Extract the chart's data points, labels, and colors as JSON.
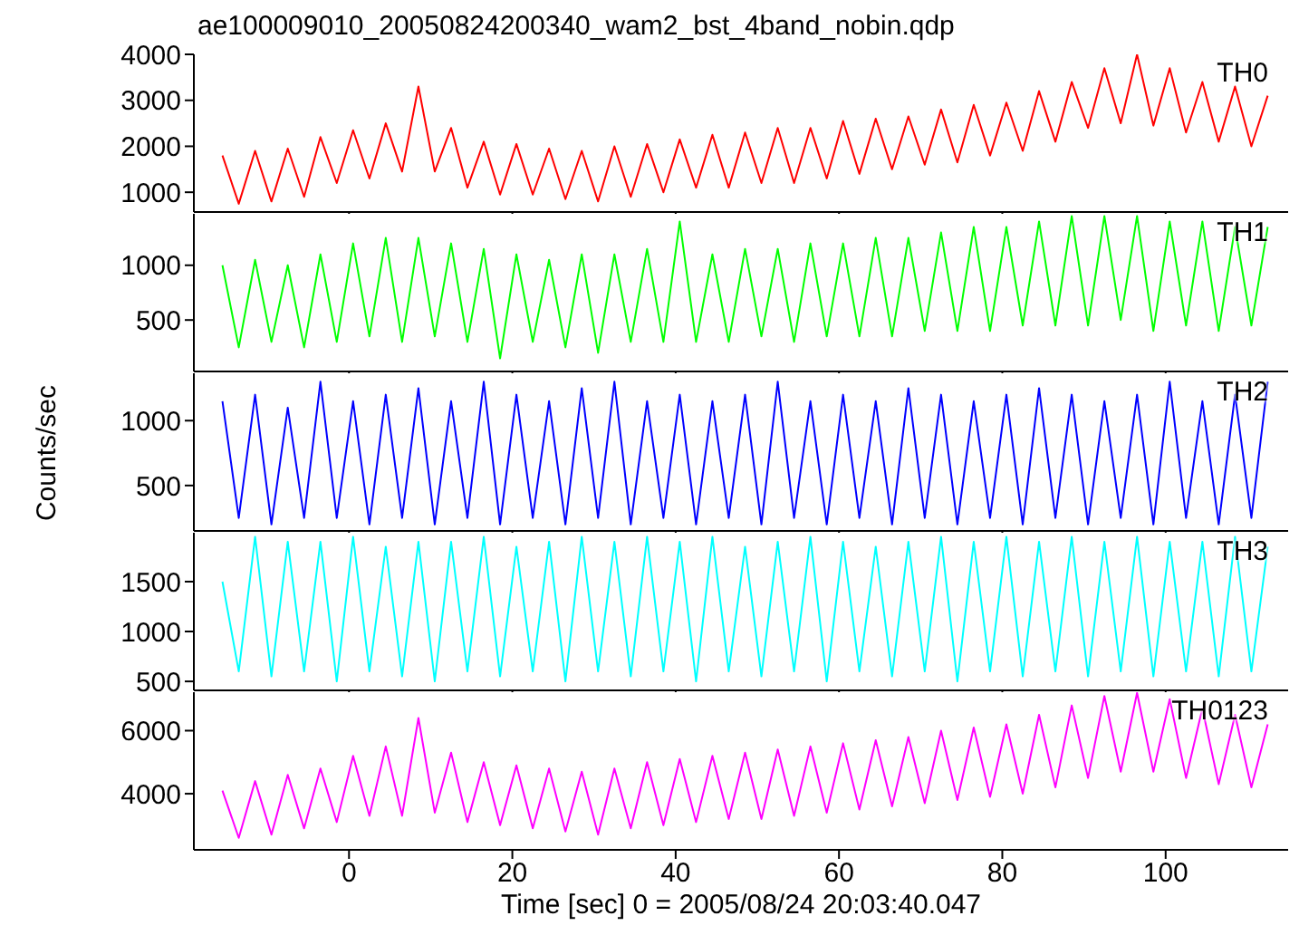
{
  "chart_data": [
    {
      "type": "line",
      "title": "ae100009010_20050824200340_wam2_bst_4band_nobin.qdp",
      "tick_labels": "y",
      "xlim": [
        -19,
        115
      ],
      "xticks": [
        0,
        20,
        40,
        60,
        80,
        100
      ],
      "ylim": [
        570,
        4000
      ],
      "yticks": [
        1000,
        2000,
        3000,
        4000
      ],
      "marker": "none",
      "x": [
        -15.5,
        -13.5,
        -11.5,
        -9.5,
        -7.5,
        -5.5,
        -3.5,
        -1.5,
        0.5,
        2.5,
        4.5,
        6.5,
        8.5,
        10.5,
        12.5,
        14.5,
        16.5,
        18.5,
        20.5,
        22.5,
        24.5,
        26.5,
        28.5,
        30.5,
        32.5,
        34.5,
        36.5,
        38.5,
        40.5,
        42.5,
        44.5,
        46.5,
        48.5,
        50.5,
        52.5,
        54.5,
        56.5,
        58.5,
        60.5,
        62.5,
        64.5,
        66.5,
        68.5,
        70.5,
        72.5,
        74.5,
        76.5,
        78.5,
        80.5,
        82.5,
        84.5,
        86.5,
        88.5,
        90.5,
        92.5,
        94.5,
        96.5,
        98.5,
        100.5,
        102.5,
        104.5,
        106.5,
        108.5,
        110.5,
        112.5
      ],
      "series": [
        {
          "name": "TH0",
          "color": "#ff0000",
          "values": [
            1800,
            750,
            1900,
            800,
            1950,
            900,
            2200,
            1200,
            2350,
            1300,
            2500,
            1450,
            3300,
            1450,
            2400,
            1100,
            2100,
            950,
            2050,
            950,
            1950,
            850,
            1900,
            800,
            2000,
            900,
            2050,
            1000,
            2150,
            1100,
            2250,
            1100,
            2300,
            1200,
            2400,
            1200,
            2400,
            1300,
            2550,
            1400,
            2600,
            1500,
            2650,
            1600,
            2800,
            1650,
            2900,
            1800,
            2950,
            1900,
            3200,
            2100,
            3400,
            2400,
            3700,
            2500,
            4000,
            2450,
            3700,
            2300,
            3400,
            2100,
            3300,
            2000,
            3100
          ]
        }
      ]
    },
    {
      "type": "line",
      "tick_labels": "y",
      "xlim": [
        -19,
        115
      ],
      "xticks": [
        0,
        20,
        40,
        60,
        80,
        100
      ],
      "ylim": [
        30,
        1470
      ],
      "yticks": [
        500,
        1000
      ],
      "marker": "none",
      "x": [
        -15.5,
        -13.5,
        -11.5,
        -9.5,
        -7.5,
        -5.5,
        -3.5,
        -1.5,
        0.5,
        2.5,
        4.5,
        6.5,
        8.5,
        10.5,
        12.5,
        14.5,
        16.5,
        18.5,
        20.5,
        22.5,
        24.5,
        26.5,
        28.5,
        30.5,
        32.5,
        34.5,
        36.5,
        38.5,
        40.5,
        42.5,
        44.5,
        46.5,
        48.5,
        50.5,
        52.5,
        54.5,
        56.5,
        58.5,
        60.5,
        62.5,
        64.5,
        66.5,
        68.5,
        70.5,
        72.5,
        74.5,
        76.5,
        78.5,
        80.5,
        82.5,
        84.5,
        86.5,
        88.5,
        90.5,
        92.5,
        94.5,
        96.5,
        98.5,
        100.5,
        102.5,
        104.5,
        106.5,
        108.5,
        110.5,
        112.5
      ],
      "series": [
        {
          "name": "TH1",
          "color": "#00ff00",
          "values": [
            1000,
            250,
            1050,
            300,
            1000,
            250,
            1100,
            300,
            1200,
            350,
            1250,
            300,
            1250,
            350,
            1200,
            300,
            1150,
            150,
            1100,
            300,
            1050,
            250,
            1100,
            200,
            1100,
            300,
            1150,
            300,
            1400,
            300,
            1100,
            300,
            1150,
            350,
            1150,
            300,
            1200,
            350,
            1200,
            350,
            1250,
            350,
            1250,
            400,
            1300,
            400,
            1350,
            400,
            1350,
            450,
            1400,
            450,
            1450,
            450,
            1450,
            500,
            1450,
            400,
            1400,
            450,
            1400,
            400,
            1350,
            450,
            1350
          ]
        }
      ]
    },
    {
      "type": "line",
      "ylabel": "Counts/sec",
      "tick_labels": "y",
      "xlim": [
        -19,
        115
      ],
      "xticks": [
        0,
        20,
        40,
        60,
        80,
        100
      ],
      "ylim": [
        150,
        1365
      ],
      "yticks": [
        500,
        1000
      ],
      "marker": "none",
      "x": [
        -15.5,
        -13.5,
        -11.5,
        -9.5,
        -7.5,
        -5.5,
        -3.5,
        -1.5,
        0.5,
        2.5,
        4.5,
        6.5,
        8.5,
        10.5,
        12.5,
        14.5,
        16.5,
        18.5,
        20.5,
        22.5,
        24.5,
        26.5,
        28.5,
        30.5,
        32.5,
        34.5,
        36.5,
        38.5,
        40.5,
        42.5,
        44.5,
        46.5,
        48.5,
        50.5,
        52.5,
        54.5,
        56.5,
        58.5,
        60.5,
        62.5,
        64.5,
        66.5,
        68.5,
        70.5,
        72.5,
        74.5,
        76.5,
        78.5,
        80.5,
        82.5,
        84.5,
        86.5,
        88.5,
        90.5,
        92.5,
        94.5,
        96.5,
        98.5,
        100.5,
        102.5,
        104.5,
        106.5,
        108.5,
        110.5,
        112.5
      ],
      "series": [
        {
          "name": "TH2",
          "color": "#0000ff",
          "values": [
            1150,
            250,
            1200,
            200,
            1100,
            250,
            1300,
            250,
            1150,
            200,
            1200,
            250,
            1250,
            200,
            1150,
            250,
            1300,
            200,
            1200,
            250,
            1150,
            200,
            1250,
            250,
            1300,
            200,
            1150,
            250,
            1200,
            200,
            1150,
            250,
            1200,
            200,
            1300,
            250,
            1150,
            200,
            1200,
            250,
            1150,
            200,
            1250,
            250,
            1200,
            200,
            1150,
            250,
            1200,
            200,
            1250,
            250,
            1200,
            200,
            1150,
            250,
            1200,
            200,
            1300,
            250,
            1150,
            200,
            1200,
            250,
            1300
          ]
        }
      ]
    },
    {
      "type": "line",
      "tick_labels": "y",
      "xlim": [
        -19,
        115
      ],
      "xticks": [
        0,
        20,
        40,
        60,
        80,
        100
      ],
      "ylim": [
        410,
        1990
      ],
      "yticks": [
        500,
        1000,
        1500
      ],
      "marker": "none",
      "x": [
        -15.5,
        -13.5,
        -11.5,
        -9.5,
        -7.5,
        -5.5,
        -3.5,
        -1.5,
        0.5,
        2.5,
        4.5,
        6.5,
        8.5,
        10.5,
        12.5,
        14.5,
        16.5,
        18.5,
        20.5,
        22.5,
        24.5,
        26.5,
        28.5,
        30.5,
        32.5,
        34.5,
        36.5,
        38.5,
        40.5,
        42.5,
        44.5,
        46.5,
        48.5,
        50.5,
        52.5,
        54.5,
        56.5,
        58.5,
        60.5,
        62.5,
        64.5,
        66.5,
        68.5,
        70.5,
        72.5,
        74.5,
        76.5,
        78.5,
        80.5,
        82.5,
        84.5,
        86.5,
        88.5,
        90.5,
        92.5,
        94.5,
        96.5,
        98.5,
        100.5,
        102.5,
        104.5,
        106.5,
        108.5,
        110.5,
        112.5
      ],
      "series": [
        {
          "name": "TH3",
          "color": "#00ffff",
          "values": [
            1500,
            600,
            1950,
            550,
            1900,
            600,
            1900,
            500,
            1950,
            600,
            1850,
            550,
            1900,
            500,
            1900,
            600,
            1950,
            550,
            1850,
            600,
            1900,
            500,
            1950,
            600,
            1900,
            550,
            1950,
            600,
            1900,
            500,
            1950,
            600,
            1850,
            550,
            1900,
            600,
            1950,
            500,
            1900,
            600,
            1850,
            550,
            1900,
            600,
            1950,
            500,
            1900,
            600,
            1950,
            550,
            1900,
            600,
            1950,
            550,
            1900,
            600,
            1950,
            550,
            1900,
            600,
            1900,
            550,
            1950,
            600,
            1850
          ]
        }
      ]
    },
    {
      "type": "line",
      "xlabel": "Time [sec] 0 = 2005/08/24 20:03:40.047",
      "xlim": [
        -19,
        115
      ],
      "xticks": [
        0,
        20,
        40,
        60,
        80,
        100
      ],
      "ylim": [
        2220,
        7220
      ],
      "yticks": [
        4000,
        6000
      ],
      "marker": "none",
      "x": [
        -15.5,
        -13.5,
        -11.5,
        -9.5,
        -7.5,
        -5.5,
        -3.5,
        -1.5,
        0.5,
        2.5,
        4.5,
        6.5,
        8.5,
        10.5,
        12.5,
        14.5,
        16.5,
        18.5,
        20.5,
        22.5,
        24.5,
        26.5,
        28.5,
        30.5,
        32.5,
        34.5,
        36.5,
        38.5,
        40.5,
        42.5,
        44.5,
        46.5,
        48.5,
        50.5,
        52.5,
        54.5,
        56.5,
        58.5,
        60.5,
        62.5,
        64.5,
        66.5,
        68.5,
        70.5,
        72.5,
        74.5,
        76.5,
        78.5,
        80.5,
        82.5,
        84.5,
        86.5,
        88.5,
        90.5,
        92.5,
        94.5,
        96.5,
        98.5,
        100.5,
        102.5,
        104.5,
        106.5,
        108.5,
        110.5,
        112.5
      ],
      "series": [
        {
          "name": "TH0123",
          "color": "#ff00ff",
          "values": [
            4100,
            2600,
            4400,
            2700,
            4600,
            2900,
            4800,
            3100,
            5200,
            3300,
            5500,
            3300,
            6400,
            3400,
            5300,
            3100,
            5000,
            3000,
            4900,
            2900,
            4800,
            2800,
            4700,
            2700,
            4800,
            2900,
            5000,
            3000,
            5100,
            3100,
            5200,
            3200,
            5300,
            3200,
            5400,
            3300,
            5500,
            3400,
            5600,
            3500,
            5700,
            3600,
            5800,
            3700,
            6000,
            3800,
            6100,
            3900,
            6200,
            4000,
            6500,
            4200,
            6800,
            4500,
            7100,
            4700,
            7200,
            4700,
            7000,
            4500,
            6700,
            4300,
            6500,
            4200,
            6200
          ]
        }
      ]
    }
  ]
}
